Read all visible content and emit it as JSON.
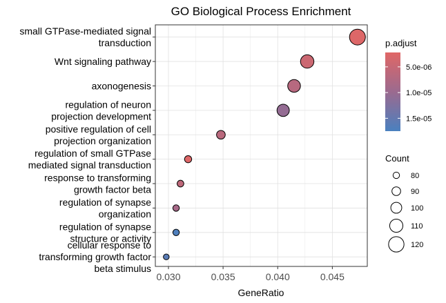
{
  "chart_data": {
    "type": "scatter",
    "title": "GO Biological Process Enrichment",
    "xlabel": "GeneRatio",
    "ylabel": "",
    "xlim": [
      0.0288,
      0.0482
    ],
    "xticks": [
      "0.030",
      "0.035",
      "0.040",
      "0.045"
    ],
    "xtick_values": [
      0.03,
      0.035,
      0.04,
      0.045
    ],
    "grid": true,
    "legend_position": "right",
    "color_legend": {
      "title": "p.adjust",
      "range": [
        2.2e-06,
        1.75e-05
      ],
      "ticks": [
        {
          "label": "5.0e-06",
          "value": 5e-06
        },
        {
          "label": "1.0e-05",
          "value": 1e-05
        },
        {
          "label": "1.5e-05",
          "value": 1.5e-05
        }
      ],
      "low_color": "#e06766",
      "high_color": "#4a80bf"
    },
    "size_legend": {
      "title": "Count",
      "entries": [
        {
          "label": "80",
          "value": 80
        },
        {
          "label": "90",
          "value": 90
        },
        {
          "label": "100",
          "value": 100
        },
        {
          "label": "110",
          "value": 110
        },
        {
          "label": "120",
          "value": 120
        }
      ]
    },
    "points": [
      {
        "label": [
          "small GTPase-mediated signal",
          "transduction"
        ],
        "gene_ratio": 0.0473,
        "count": 122,
        "p_adjust": 2.5e-06
      },
      {
        "label": [
          "Wnt signaling pathway"
        ],
        "gene_ratio": 0.0427,
        "count": 111,
        "p_adjust": 4.5e-06
      },
      {
        "label": [
          "axonogenesis"
        ],
        "gene_ratio": 0.0415,
        "count": 108,
        "p_adjust": 6.8e-06
      },
      {
        "label": [
          "regulation of neuron",
          "projection development"
        ],
        "gene_ratio": 0.0405,
        "count": 106,
        "p_adjust": 1.05e-05
      },
      {
        "label": [
          "positive regulation of cell",
          "projection organization"
        ],
        "gene_ratio": 0.0348,
        "count": 90,
        "p_adjust": 6.5e-06
      },
      {
        "label": [
          "regulation of small GTPase",
          "mediated signal transduction"
        ],
        "gene_ratio": 0.0318,
        "count": 83,
        "p_adjust": 2.5e-06
      },
      {
        "label": [
          "response to transforming",
          "growth factor beta"
        ],
        "gene_ratio": 0.0311,
        "count": 81,
        "p_adjust": 6e-06
      },
      {
        "label": [
          "regulation of synapse",
          "organization"
        ],
        "gene_ratio": 0.0307,
        "count": 80,
        "p_adjust": 8.5e-06
      },
      {
        "label": [
          "regulation of synapse",
          "structure or activity"
        ],
        "gene_ratio": 0.0307,
        "count": 80,
        "p_adjust": 1.7e-05
      },
      {
        "label": [
          "cellular response to",
          "transforming growth factor",
          "beta stimulus"
        ],
        "gene_ratio": 0.0298,
        "count": 77,
        "p_adjust": 1.6e-05
      }
    ]
  }
}
